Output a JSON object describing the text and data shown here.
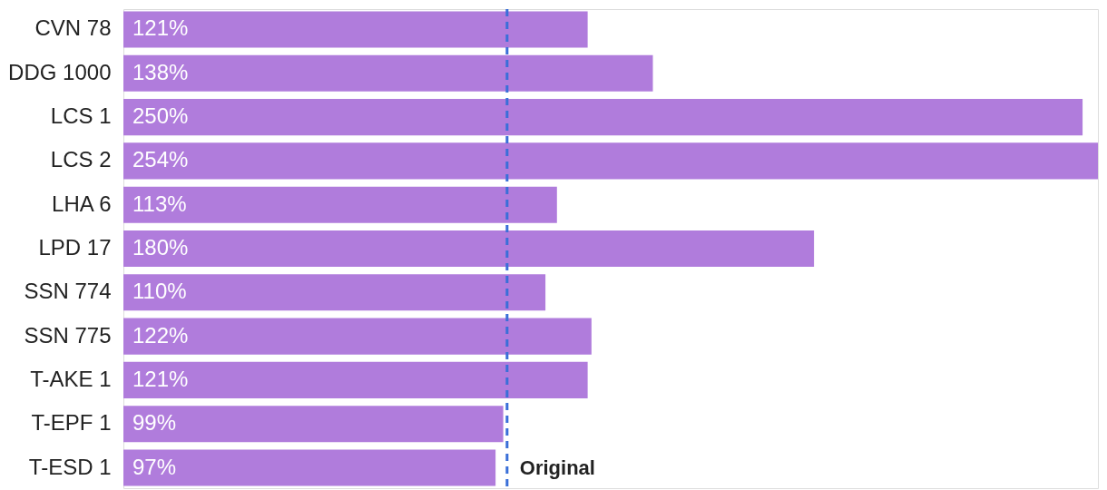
{
  "chart_data": {
    "type": "bar",
    "orientation": "horizontal",
    "categories": [
      "CVN 78",
      "DDG 1000",
      "LCS 1",
      "LCS 2",
      "LHA 6",
      "LPD 17",
      "SSN 774",
      "SSN 775",
      "T-AKE 1",
      "T-EPF 1",
      "T-ESD 1"
    ],
    "values": [
      121,
      138,
      250,
      254,
      113,
      180,
      110,
      122,
      121,
      99,
      97
    ],
    "value_labels": [
      "121%",
      "138%",
      "250%",
      "254%",
      "113%",
      "180%",
      "110%",
      "122%",
      "121%",
      "99%",
      "97%"
    ],
    "color": "#b07cdc",
    "xlim": [
      0,
      254
    ],
    "ref_lines": [
      {
        "axis": "x",
        "value": 100,
        "label": "Original",
        "color": "#3a6fd8",
        "line_style": "dashed"
      }
    ]
  }
}
